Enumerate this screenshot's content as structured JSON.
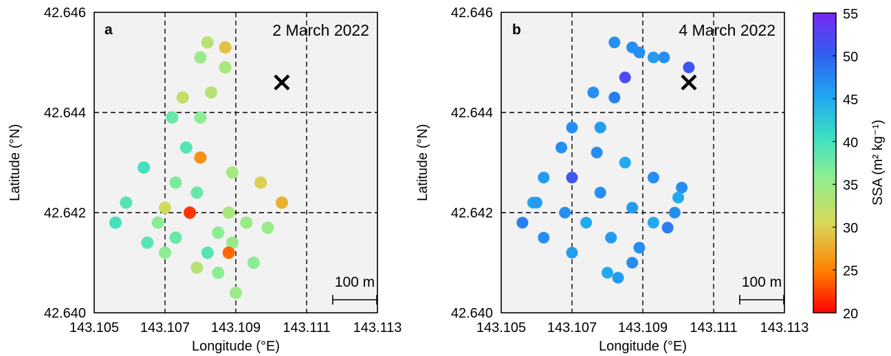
{
  "chart_data": [
    {
      "type": "scatter",
      "panel_label": "a",
      "title": "2 March 2022",
      "xlabel": "Longitude (°E)",
      "ylabel": "Latitude (°N)",
      "xlim": [
        143.105,
        143.113
      ],
      "ylim": [
        42.64,
        42.646
      ],
      "xticks": [
        "143.105",
        "143.107",
        "143.109",
        "143.111",
        "143.113"
      ],
      "yticks": [
        "42.640",
        "42.642",
        "42.644",
        "42.646"
      ],
      "grid": true,
      "background": "#f2f2f2",
      "marker": {
        "type": "cross",
        "lon": 143.1103,
        "lat": 42.6446
      },
      "scale_bar": "100 m",
      "points": [
        {
          "lon": 143.1082,
          "lat": 42.6454,
          "ssa": 33
        },
        {
          "lon": 143.1087,
          "lat": 42.6453,
          "ssa": 29
        },
        {
          "lon": 143.108,
          "lat": 42.6451,
          "ssa": 35
        },
        {
          "lon": 143.1087,
          "lat": 42.6449,
          "ssa": 34
        },
        {
          "lon": 143.1075,
          "lat": 42.6443,
          "ssa": 32
        },
        {
          "lon": 143.1083,
          "lat": 42.6444,
          "ssa": 33
        },
        {
          "lon": 143.1072,
          "lat": 42.6439,
          "ssa": 38
        },
        {
          "lon": 143.108,
          "lat": 42.6439,
          "ssa": 36
        },
        {
          "lon": 143.1076,
          "lat": 42.6433,
          "ssa": 39
        },
        {
          "lon": 143.108,
          "lat": 42.6431,
          "ssa": 26
        },
        {
          "lon": 143.1064,
          "lat": 42.6429,
          "ssa": 40
        },
        {
          "lon": 143.1089,
          "lat": 42.6428,
          "ssa": 34
        },
        {
          "lon": 143.1073,
          "lat": 42.6426,
          "ssa": 37
        },
        {
          "lon": 143.1097,
          "lat": 42.6426,
          "ssa": 30
        },
        {
          "lon": 143.1079,
          "lat": 42.6424,
          "ssa": 38
        },
        {
          "lon": 143.1059,
          "lat": 42.6422,
          "ssa": 39
        },
        {
          "lon": 143.1103,
          "lat": 42.6422,
          "ssa": 28
        },
        {
          "lon": 143.107,
          "lat": 42.6421,
          "ssa": 31
        },
        {
          "lon": 143.1077,
          "lat": 42.642,
          "ssa": 22
        },
        {
          "lon": 143.1088,
          "lat": 42.642,
          "ssa": 34
        },
        {
          "lon": 143.1093,
          "lat": 42.6418,
          "ssa": 35
        },
        {
          "lon": 143.1056,
          "lat": 42.6418,
          "ssa": 40
        },
        {
          "lon": 143.1068,
          "lat": 42.6418,
          "ssa": 36
        },
        {
          "lon": 143.1085,
          "lat": 42.6416,
          "ssa": 36
        },
        {
          "lon": 143.1099,
          "lat": 42.6417,
          "ssa": 35
        },
        {
          "lon": 143.1073,
          "lat": 42.6415,
          "ssa": 38
        },
        {
          "lon": 143.1089,
          "lat": 42.6414,
          "ssa": 35
        },
        {
          "lon": 143.1065,
          "lat": 42.6414,
          "ssa": 39
        },
        {
          "lon": 143.107,
          "lat": 42.6412,
          "ssa": 36
        },
        {
          "lon": 143.1082,
          "lat": 42.6412,
          "ssa": 39
        },
        {
          "lon": 143.1088,
          "lat": 42.6412,
          "ssa": 24
        },
        {
          "lon": 143.1095,
          "lat": 42.641,
          "ssa": 36
        },
        {
          "lon": 143.1079,
          "lat": 42.6409,
          "ssa": 33
        },
        {
          "lon": 143.1085,
          "lat": 42.6408,
          "ssa": 36
        },
        {
          "lon": 143.109,
          "lat": 42.6404,
          "ssa": 35
        }
      ]
    },
    {
      "type": "scatter",
      "panel_label": "b",
      "title": "4 March 2022",
      "xlabel": "Longitude (°E)",
      "ylabel": "Latitude (°N)",
      "xlim": [
        143.105,
        143.113
      ],
      "ylim": [
        42.64,
        42.646
      ],
      "xticks": [
        "143.105",
        "143.107",
        "143.109",
        "143.111",
        "143.113"
      ],
      "yticks": [
        "42.640",
        "42.642",
        "42.644",
        "42.646"
      ],
      "grid": true,
      "background": "#f2f2f2",
      "marker": {
        "type": "cross",
        "lon": 143.1103,
        "lat": 42.6446
      },
      "scale_bar": "100 m",
      "points": [
        {
          "lon": 143.1082,
          "lat": 42.6454,
          "ssa": 47
        },
        {
          "lon": 143.1087,
          "lat": 42.6453,
          "ssa": 47
        },
        {
          "lon": 143.1089,
          "lat": 42.6452,
          "ssa": 47
        },
        {
          "lon": 143.1093,
          "lat": 42.6451,
          "ssa": 46
        },
        {
          "lon": 143.1096,
          "lat": 42.6451,
          "ssa": 47
        },
        {
          "lon": 143.1103,
          "lat": 42.6449,
          "ssa": 51
        },
        {
          "lon": 143.1085,
          "lat": 42.6447,
          "ssa": 52
        },
        {
          "lon": 143.1076,
          "lat": 42.6444,
          "ssa": 47
        },
        {
          "lon": 143.1082,
          "lat": 42.6443,
          "ssa": 48
        },
        {
          "lon": 143.107,
          "lat": 42.6437,
          "ssa": 47
        },
        {
          "lon": 143.1078,
          "lat": 42.6437,
          "ssa": 46
        },
        {
          "lon": 143.1067,
          "lat": 42.6433,
          "ssa": 47
        },
        {
          "lon": 143.1077,
          "lat": 42.6432,
          "ssa": 47
        },
        {
          "lon": 143.1085,
          "lat": 42.643,
          "ssa": 45
        },
        {
          "lon": 143.1062,
          "lat": 42.6427,
          "ssa": 46
        },
        {
          "lon": 143.107,
          "lat": 42.6427,
          "ssa": 51
        },
        {
          "lon": 143.1093,
          "lat": 42.6427,
          "ssa": 47
        },
        {
          "lon": 143.1101,
          "lat": 42.6425,
          "ssa": 47
        },
        {
          "lon": 143.1078,
          "lat": 42.6424,
          "ssa": 47
        },
        {
          "lon": 143.11,
          "lat": 42.6423,
          "ssa": 45
        },
        {
          "lon": 143.1059,
          "lat": 42.6422,
          "ssa": 45
        },
        {
          "lon": 143.106,
          "lat": 42.6422,
          "ssa": 46
        },
        {
          "lon": 143.1087,
          "lat": 42.6421,
          "ssa": 46
        },
        {
          "lon": 143.1068,
          "lat": 42.642,
          "ssa": 47
        },
        {
          "lon": 143.1099,
          "lat": 42.642,
          "ssa": 47
        },
        {
          "lon": 143.1093,
          "lat": 42.6418,
          "ssa": 45
        },
        {
          "lon": 143.1056,
          "lat": 42.6418,
          "ssa": 48
        },
        {
          "lon": 143.1074,
          "lat": 42.6418,
          "ssa": 45
        },
        {
          "lon": 143.1097,
          "lat": 42.6417,
          "ssa": 48
        },
        {
          "lon": 143.1062,
          "lat": 42.6415,
          "ssa": 47
        },
        {
          "lon": 143.1081,
          "lat": 42.6415,
          "ssa": 46
        },
        {
          "lon": 143.1089,
          "lat": 42.6413,
          "ssa": 47
        },
        {
          "lon": 143.107,
          "lat": 42.6412,
          "ssa": 46
        },
        {
          "lon": 143.1087,
          "lat": 42.641,
          "ssa": 47
        },
        {
          "lon": 143.108,
          "lat": 42.6408,
          "ssa": 45
        },
        {
          "lon": 143.1083,
          "lat": 42.6407,
          "ssa": 46
        }
      ]
    }
  ],
  "colorbar": {
    "label": "SSA (m² kg⁻¹)",
    "min": 20,
    "max": 55,
    "ticks": [
      "20",
      "25",
      "30",
      "35",
      "40",
      "45",
      "50",
      "55"
    ],
    "colormap": "rainbow (red → yellow → green → cyan → blue → violet)"
  }
}
